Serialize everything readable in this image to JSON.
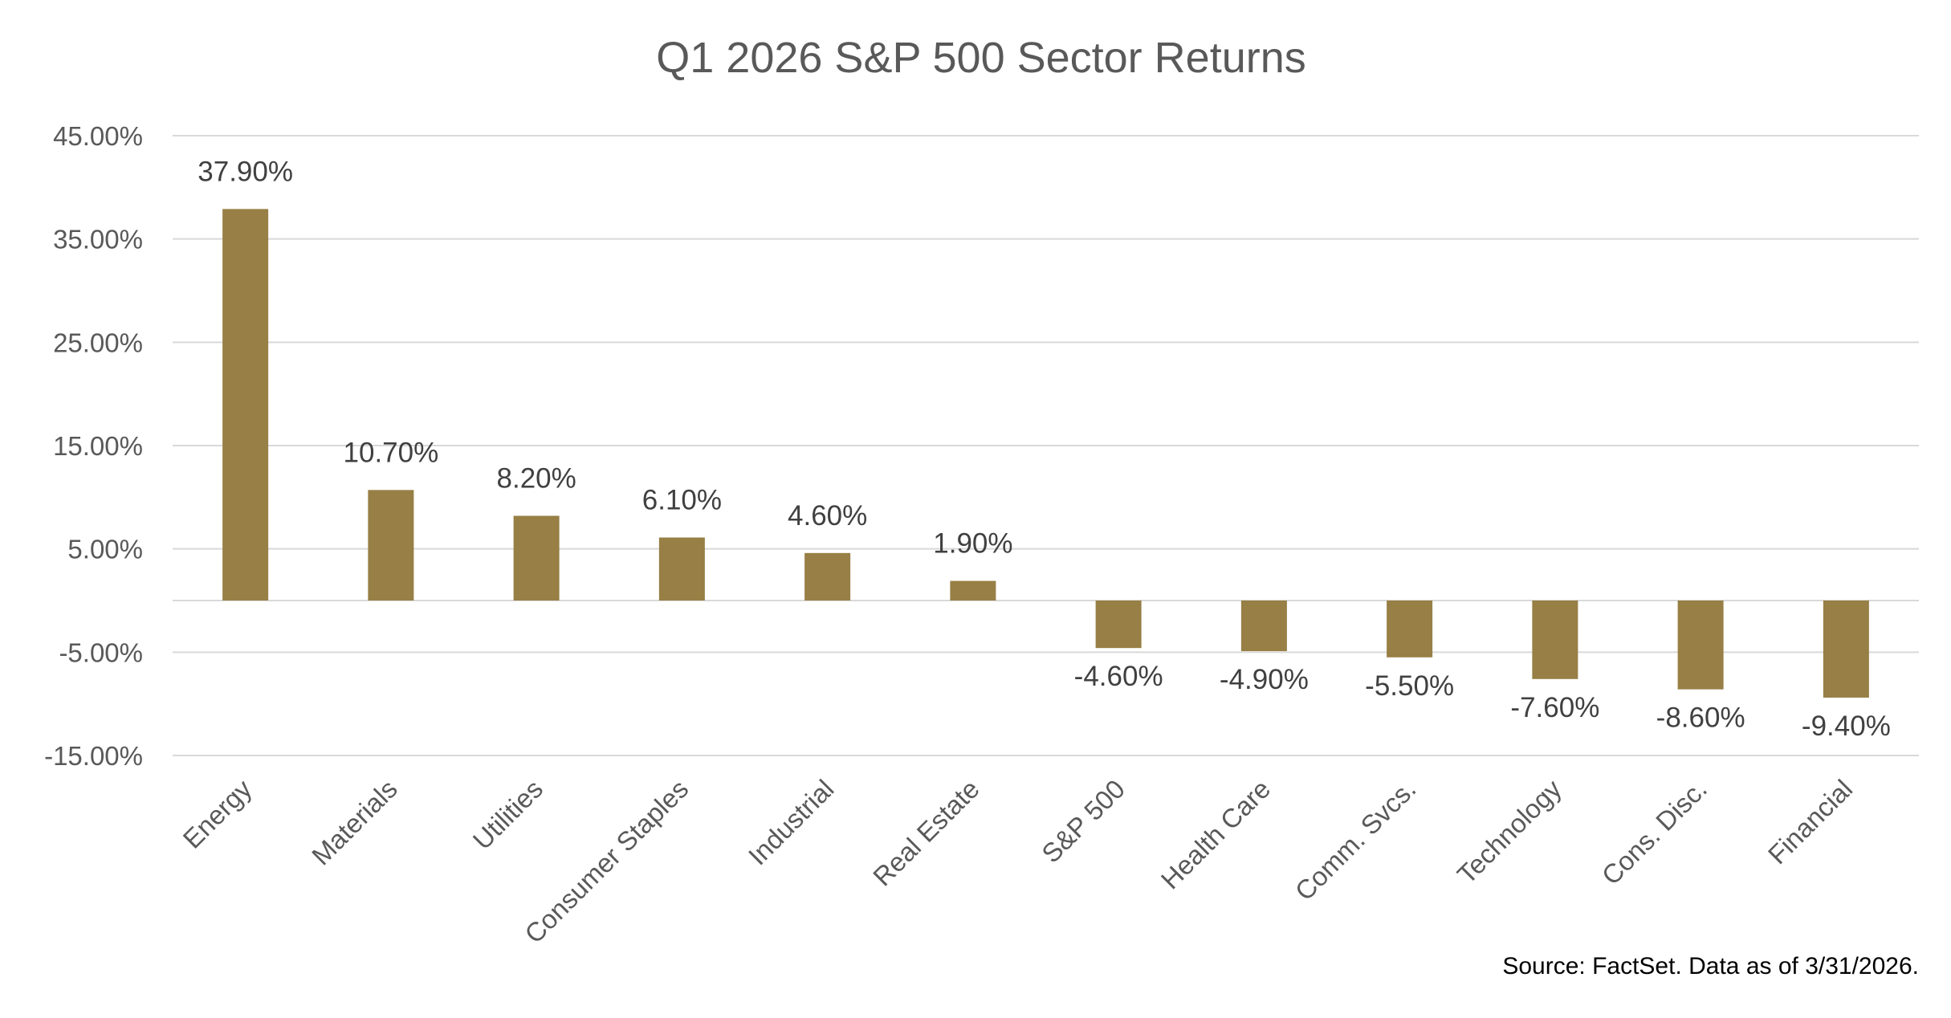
{
  "chart_data": {
    "type": "bar",
    "title": "Q1 2026 S&P 500 Sector Returns",
    "xlabel": "",
    "ylabel": "",
    "ylim": [
      -15,
      45
    ],
    "yticks": [
      "45.00%",
      "35.00%",
      "25.00%",
      "15.00%",
      "5.00%",
      "-5.00%",
      "-15.00%"
    ],
    "ytick_values": [
      45,
      35,
      25,
      15,
      5,
      -5,
      -15
    ],
    "grid": true,
    "legend": "none",
    "categories": [
      "Energy",
      "Materials",
      "Utilities",
      "Consumer Staples",
      "Industrial",
      "Real Estate",
      "S&P 500",
      "Health Care",
      "Comm. Svcs.",
      "Technology",
      "Cons. Disc.",
      "Financial"
    ],
    "values": [
      37.9,
      10.7,
      8.2,
      6.1,
      4.6,
      1.9,
      -4.6,
      -4.9,
      -5.5,
      -7.6,
      -8.6,
      -9.4
    ],
    "data_labels": [
      "37.90%",
      "10.70%",
      "8.20%",
      "6.10%",
      "4.60%",
      "1.90%",
      "-4.60%",
      "-4.90%",
      "-5.50%",
      "-7.60%",
      "-8.60%",
      "-9.40%"
    ],
    "source": "Source: FactSet. Data as of 3/31/2026."
  },
  "colors": {
    "bar": "#977F45",
    "grid": "#D9D9D9",
    "axis_text": "#595959",
    "label_text": "#404040"
  }
}
